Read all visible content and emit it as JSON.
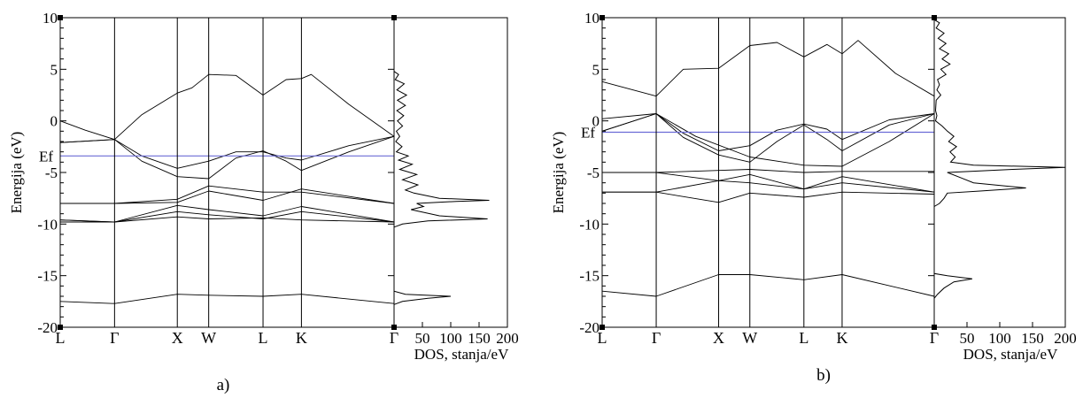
{
  "chart_data": [
    {
      "type": "line",
      "panel_label": "a)",
      "ylabel": "Energija (eV)",
      "ylim": [
        -20,
        10
      ],
      "yticks": [
        10,
        5,
        0,
        -5,
        -10,
        -15,
        -20
      ],
      "ytick_labels": [
        "10",
        "5",
        "0",
        "-5",
        "-10",
        "-15",
        "-20"
      ],
      "fermi": {
        "label": "Ef",
        "value": -3.4,
        "color": "#6b6bd6"
      },
      "kpath": {
        "labels": [
          "L",
          "Γ",
          "X",
          "W",
          "L",
          "K",
          "Γ"
        ],
        "positions": [
          0,
          0.866,
          1.866,
          2.366,
          3.232,
          3.844,
          5.32
        ]
      },
      "bands": [
        [
          [
            0,
            0
          ],
          [
            0.4,
            -0.9
          ],
          [
            0.866,
            -1.8
          ],
          [
            1.3,
            0.6
          ],
          [
            1.866,
            2.7
          ],
          [
            2.1,
            3.2
          ],
          [
            2.366,
            4.5
          ],
          [
            2.8,
            4.4
          ],
          [
            3.232,
            2.5
          ],
          [
            3.6,
            4.0
          ],
          [
            3.844,
            4.1
          ],
          [
            4.0,
            4.5
          ],
          [
            4.6,
            1.6
          ],
          [
            5.32,
            -1.5
          ]
        ],
        [
          [
            0,
            -2.1
          ],
          [
            0.866,
            -1.8
          ],
          [
            1.3,
            -3.4
          ],
          [
            1.866,
            -4.6
          ],
          [
            2.366,
            -3.9
          ],
          [
            2.8,
            -3.0
          ],
          [
            3.232,
            -3.0
          ],
          [
            3.6,
            -3.6
          ],
          [
            3.844,
            -3.8
          ],
          [
            4.6,
            -2.4
          ],
          [
            5.32,
            -1.5
          ]
        ],
        [
          [
            0,
            -2.1
          ],
          [
            0.866,
            -1.8
          ],
          [
            1.3,
            -3.9
          ],
          [
            1.866,
            -5.4
          ],
          [
            2.366,
            -5.6
          ],
          [
            2.8,
            -3.6
          ],
          [
            3.232,
            -2.9
          ],
          [
            3.6,
            -3.9
          ],
          [
            3.844,
            -4.8
          ],
          [
            4.6,
            -3.0
          ],
          [
            5.32,
            -1.5
          ]
        ],
        [
          [
            0,
            -8.0
          ],
          [
            0.866,
            -8.0
          ],
          [
            1.866,
            -7.6
          ],
          [
            2.366,
            -6.3
          ],
          [
            3.232,
            -6.9
          ],
          [
            3.844,
            -6.9
          ],
          [
            5.32,
            -8.0
          ]
        ],
        [
          [
            0,
            -8.0
          ],
          [
            0.866,
            -8.0
          ],
          [
            1.866,
            -7.9
          ],
          [
            2.366,
            -6.8
          ],
          [
            3.232,
            -7.7
          ],
          [
            3.844,
            -6.6
          ],
          [
            5.32,
            -8.0
          ]
        ],
        [
          [
            0,
            -9.6
          ],
          [
            0.866,
            -9.8
          ],
          [
            1.866,
            -8.2
          ],
          [
            2.366,
            -8.6
          ],
          [
            3.232,
            -9.2
          ],
          [
            3.844,
            -8.3
          ],
          [
            5.32,
            -9.8
          ]
        ],
        [
          [
            0,
            -9.6
          ],
          [
            0.866,
            -9.8
          ],
          [
            1.866,
            -8.8
          ],
          [
            2.366,
            -9.1
          ],
          [
            3.232,
            -9.5
          ],
          [
            3.844,
            -8.8
          ],
          [
            5.32,
            -9.8
          ]
        ],
        [
          [
            0,
            -9.8
          ],
          [
            0.866,
            -9.8
          ],
          [
            1.866,
            -9.3
          ],
          [
            2.366,
            -9.5
          ],
          [
            3.232,
            -9.4
          ],
          [
            3.844,
            -9.6
          ],
          [
            5.32,
            -9.8
          ]
        ],
        [
          [
            0,
            -17.5
          ],
          [
            0.866,
            -17.7
          ],
          [
            1.866,
            -16.8
          ],
          [
            2.366,
            -16.9
          ],
          [
            3.232,
            -17.0
          ],
          [
            3.844,
            -16.8
          ],
          [
            5.32,
            -17.7
          ]
        ]
      ],
      "dos": {
        "xlabel": "DOS, stanja/eV",
        "xlim": [
          0,
          200
        ],
        "xticks": [
          50,
          100,
          150,
          200
        ],
        "xtick_labels": [
          "50",
          "100",
          "150",
          "200"
        ],
        "gamma_label": "Γ",
        "profile": [
          [
            4.8,
            0
          ],
          [
            4.5,
            8
          ],
          [
            4.0,
            2
          ],
          [
            3.6,
            18
          ],
          [
            3.0,
            5
          ],
          [
            2.5,
            22
          ],
          [
            2.0,
            6
          ],
          [
            1.5,
            20
          ],
          [
            1.0,
            5
          ],
          [
            0.5,
            17
          ],
          [
            0.0,
            6
          ],
          [
            -0.5,
            15
          ],
          [
            -1.0,
            4
          ],
          [
            -1.5,
            10
          ],
          [
            -2.0,
            3
          ],
          [
            -2.5,
            14
          ],
          [
            -3.0,
            4
          ],
          [
            -3.4,
            25
          ],
          [
            -3.8,
            8
          ],
          [
            -4.2,
            32
          ],
          [
            -4.7,
            10
          ],
          [
            -5.2,
            40
          ],
          [
            -5.7,
            15
          ],
          [
            -6.2,
            42
          ],
          [
            -6.7,
            20
          ],
          [
            -7.0,
            35
          ],
          [
            -7.5,
            80
          ],
          [
            -7.7,
            168
          ],
          [
            -7.8,
            110
          ],
          [
            -8.0,
            40
          ],
          [
            -8.3,
            52
          ],
          [
            -8.6,
            30
          ],
          [
            -9.2,
            80
          ],
          [
            -9.5,
            165
          ],
          [
            -9.7,
            60
          ],
          [
            -10.0,
            15
          ],
          [
            -10.3,
            0
          ],
          [
            -16.5,
            0
          ],
          [
            -16.8,
            20
          ],
          [
            -17.0,
            100
          ],
          [
            -17.2,
            60
          ],
          [
            -17.5,
            15
          ],
          [
            -17.8,
            0
          ]
        ]
      }
    },
    {
      "type": "line",
      "panel_label": "b)",
      "ylabel": "Energija (eV)",
      "ylim": [
        -20,
        10
      ],
      "yticks": [
        10,
        5,
        0,
        -5,
        -10,
        -15,
        -20
      ],
      "ytick_labels": [
        "10",
        "5",
        "0",
        "-5",
        "-10",
        "-15",
        "-20"
      ],
      "fermi": {
        "label": "Ef",
        "value": -1.1,
        "color": "#6b6bd6"
      },
      "kpath": {
        "labels": [
          "L",
          "Γ",
          "X",
          "W",
          "L",
          "K",
          "Γ"
        ],
        "positions": [
          0,
          0.866,
          1.866,
          2.366,
          3.232,
          3.844,
          5.32
        ]
      },
      "bands": [
        [
          [
            0,
            3.8
          ],
          [
            0.866,
            2.4
          ],
          [
            1.3,
            5.0
          ],
          [
            1.866,
            5.1
          ],
          [
            2.366,
            7.3
          ],
          [
            2.8,
            7.6
          ],
          [
            3.232,
            6.2
          ],
          [
            3.6,
            7.4
          ],
          [
            3.844,
            6.5
          ],
          [
            4.1,
            7.8
          ],
          [
            4.7,
            4.6
          ],
          [
            5.32,
            2.4
          ]
        ],
        [
          [
            0,
            -1.0
          ],
          [
            0.866,
            0.7
          ],
          [
            1.3,
            -1.2
          ],
          [
            1.866,
            -2.9
          ],
          [
            2.366,
            -2.4
          ],
          [
            2.8,
            -0.9
          ],
          [
            3.232,
            -0.3
          ],
          [
            3.6,
            -0.8
          ],
          [
            3.844,
            -1.8
          ],
          [
            4.6,
            0.1
          ],
          [
            5.32,
            0.7
          ]
        ],
        [
          [
            0,
            -1.0
          ],
          [
            0.866,
            0.7
          ],
          [
            1.3,
            -1.6
          ],
          [
            1.866,
            -3.3
          ],
          [
            2.366,
            -4.0
          ],
          [
            2.8,
            -2.0
          ],
          [
            3.232,
            -0.4
          ],
          [
            3.6,
            -1.8
          ],
          [
            3.844,
            -2.9
          ],
          [
            4.6,
            -0.4
          ],
          [
            5.32,
            0.7
          ]
        ],
        [
          [
            0,
            0.2
          ],
          [
            0.866,
            0.7
          ],
          [
            1.5,
            -1.5
          ],
          [
            2.366,
            -3.5
          ],
          [
            3.232,
            -4.3
          ],
          [
            3.844,
            -4.4
          ],
          [
            4.6,
            -2.0
          ],
          [
            5.32,
            0.7
          ]
        ],
        [
          [
            0,
            -5.0
          ],
          [
            0.866,
            -5.0
          ],
          [
            1.866,
            -4.8
          ],
          [
            2.366,
            -4.7
          ],
          [
            3.232,
            -5.0
          ],
          [
            3.844,
            -4.9
          ],
          [
            5.32,
            -4.9
          ]
        ],
        [
          [
            0,
            -5.0
          ],
          [
            0.866,
            -5.0
          ],
          [
            1.866,
            -5.8
          ],
          [
            2.366,
            -5.2
          ],
          [
            3.232,
            -6.6
          ],
          [
            3.844,
            -5.4
          ],
          [
            5.32,
            -6.9
          ]
        ],
        [
          [
            0,
            -6.9
          ],
          [
            0.866,
            -6.9
          ],
          [
            1.866,
            -5.8
          ],
          [
            2.366,
            -6.0
          ],
          [
            3.232,
            -6.6
          ],
          [
            3.844,
            -6.0
          ],
          [
            5.32,
            -6.9
          ]
        ],
        [
          [
            0,
            -6.9
          ],
          [
            0.866,
            -6.9
          ],
          [
            1.866,
            -7.9
          ],
          [
            2.366,
            -7.0
          ],
          [
            3.232,
            -7.4
          ],
          [
            3.844,
            -6.9
          ],
          [
            5.32,
            -7.1
          ]
        ],
        [
          [
            0,
            -16.5
          ],
          [
            0.866,
            -17.0
          ],
          [
            1.866,
            -14.9
          ],
          [
            2.366,
            -14.9
          ],
          [
            3.232,
            -15.4
          ],
          [
            3.844,
            -14.9
          ],
          [
            5.32,
            -17.0
          ]
        ]
      ],
      "dos": {
        "xlabel": "DOS, stanja/eV",
        "xlim": [
          0,
          200
        ],
        "xticks": [
          50,
          100,
          150,
          200
        ],
        "xtick_labels": [
          "50",
          "100",
          "150",
          "200"
        ],
        "gamma_label": "Γ",
        "profile": [
          [
            9.8,
            0
          ],
          [
            9.5,
            8
          ],
          [
            9.0,
            3
          ],
          [
            8.5,
            15
          ],
          [
            8.0,
            6
          ],
          [
            7.5,
            18
          ],
          [
            7.0,
            8
          ],
          [
            6.5,
            22
          ],
          [
            6.0,
            12
          ],
          [
            5.5,
            24
          ],
          [
            5.0,
            10
          ],
          [
            4.5,
            18
          ],
          [
            4.0,
            5
          ],
          [
            3.5,
            8
          ],
          [
            3.0,
            4
          ],
          [
            2.5,
            10
          ],
          [
            2.0,
            3
          ],
          [
            1.0,
            2
          ],
          [
            0.5,
            4
          ],
          [
            0.0,
            2
          ],
          [
            -0.5,
            12
          ],
          [
            -1.0,
            20
          ],
          [
            -1.5,
            30
          ],
          [
            -2.0,
            22
          ],
          [
            -2.5,
            34
          ],
          [
            -3.0,
            24
          ],
          [
            -3.5,
            32
          ],
          [
            -4.0,
            25
          ],
          [
            -4.3,
            60
          ],
          [
            -4.5,
            200
          ],
          [
            -4.7,
            120
          ],
          [
            -5.0,
            20
          ],
          [
            -5.5,
            40
          ],
          [
            -6.0,
            60
          ],
          [
            -6.5,
            140
          ],
          [
            -6.8,
            70
          ],
          [
            -7.0,
            20
          ],
          [
            -7.5,
            15
          ],
          [
            -8.0,
            8
          ],
          [
            -8.3,
            0
          ],
          [
            -14.8,
            0
          ],
          [
            -15.0,
            20
          ],
          [
            -15.3,
            58
          ],
          [
            -15.6,
            30
          ],
          [
            -16.2,
            15
          ],
          [
            -16.8,
            5
          ],
          [
            -17.2,
            0
          ]
        ]
      }
    }
  ]
}
